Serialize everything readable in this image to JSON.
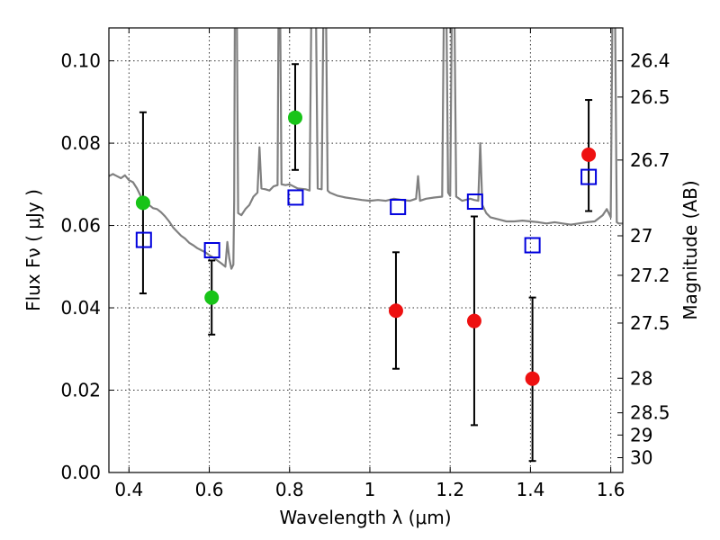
{
  "chart_data": {
    "type": "scatter",
    "title": "",
    "xlabel": "Wavelength  λ (μm)",
    "ylabel": "Flux  Fν  ( μJy )",
    "y2label": "Magnitude (AB)",
    "xlim": [
      0.35,
      1.63
    ],
    "ylim": [
      0.0,
      0.108
    ],
    "grid": true,
    "x_ticks": [
      0.4,
      0.6,
      0.8,
      1.0,
      1.2,
      1.4,
      1.6
    ],
    "x_tick_labels": [
      "0.4",
      "0.6",
      "0.8",
      "1",
      "1.2",
      "1.4",
      "1.6"
    ],
    "y_ticks": [
      0.0,
      0.02,
      0.04,
      0.06,
      0.08,
      0.1
    ],
    "y_tick_labels": [
      "0.00",
      "0.02",
      "0.04",
      "0.06",
      "0.08",
      "0.10"
    ],
    "y2_ticks": [
      {
        "label": "26.4",
        "flux": 0.1
      },
      {
        "label": "26.5",
        "flux": 0.0912
      },
      {
        "label": "26.7",
        "flux": 0.0759
      },
      {
        "label": "27",
        "flux": 0.0575
      },
      {
        "label": "27.2",
        "flux": 0.0479
      },
      {
        "label": "27.5",
        "flux": 0.0363
      },
      {
        "label": "28",
        "flux": 0.0229
      },
      {
        "label": "28.5",
        "flux": 0.0145
      },
      {
        "label": "29",
        "flux": 0.0091
      },
      {
        "label": "30",
        "flux": 0.0036
      }
    ],
    "colors": {
      "spectrum": "#808080",
      "green": "#18c418",
      "red": "#ee1111",
      "model": "#0000dd",
      "errorbar": "#000000"
    },
    "series": [
      {
        "kind": "spectrum",
        "points": [
          [
            0.35,
            0.072
          ],
          [
            0.36,
            0.0725
          ],
          [
            0.37,
            0.072
          ],
          [
            0.38,
            0.0715
          ],
          [
            0.39,
            0.0722
          ],
          [
            0.4,
            0.071
          ],
          [
            0.41,
            0.0705
          ],
          [
            0.42,
            0.069
          ],
          [
            0.43,
            0.067
          ],
          [
            0.44,
            0.0665
          ],
          [
            0.45,
            0.065
          ],
          [
            0.46,
            0.0642
          ],
          [
            0.47,
            0.064
          ],
          [
            0.48,
            0.0632
          ],
          [
            0.49,
            0.0622
          ],
          [
            0.5,
            0.061
          ],
          [
            0.51,
            0.0595
          ],
          [
            0.52,
            0.0585
          ],
          [
            0.53,
            0.0575
          ],
          [
            0.54,
            0.0568
          ],
          [
            0.55,
            0.0558
          ],
          [
            0.56,
            0.0552
          ],
          [
            0.57,
            0.0545
          ],
          [
            0.58,
            0.054
          ],
          [
            0.59,
            0.0535
          ],
          [
            0.6,
            0.0528
          ],
          [
            0.61,
            0.0522
          ],
          [
            0.62,
            0.0515
          ],
          [
            0.63,
            0.0508
          ],
          [
            0.64,
            0.05
          ],
          [
            0.645,
            0.056
          ],
          [
            0.65,
            0.052
          ],
          [
            0.655,
            0.0495
          ],
          [
            0.66,
            0.0505
          ],
          [
            0.662,
            0.066
          ],
          [
            0.664,
            0.12
          ],
          [
            0.668,
            0.12
          ],
          [
            0.672,
            0.063
          ],
          [
            0.68,
            0.0625
          ],
          [
            0.69,
            0.064
          ],
          [
            0.7,
            0.065
          ],
          [
            0.71,
            0.067
          ],
          [
            0.72,
            0.068
          ],
          [
            0.725,
            0.079
          ],
          [
            0.73,
            0.069
          ],
          [
            0.74,
            0.0688
          ],
          [
            0.75,
            0.0685
          ],
          [
            0.76,
            0.0695
          ],
          [
            0.77,
            0.0698
          ],
          [
            0.773,
            0.12
          ],
          [
            0.776,
            0.12
          ],
          [
            0.78,
            0.07
          ],
          [
            0.79,
            0.0698
          ],
          [
            0.8,
            0.07
          ],
          [
            0.82,
            0.069
          ],
          [
            0.84,
            0.0688
          ],
          [
            0.85,
            0.0685
          ],
          [
            0.855,
            0.12
          ],
          [
            0.86,
            0.12
          ],
          [
            0.865,
            0.12
          ],
          [
            0.87,
            0.069
          ],
          [
            0.88,
            0.0688
          ],
          [
            0.885,
            0.12
          ],
          [
            0.89,
            0.12
          ],
          [
            0.895,
            0.0685
          ],
          [
            0.9,
            0.068
          ],
          [
            0.92,
            0.0672
          ],
          [
            0.94,
            0.0668
          ],
          [
            0.96,
            0.0665
          ],
          [
            0.98,
            0.0662
          ],
          [
            1.0,
            0.066
          ],
          [
            1.02,
            0.0662
          ],
          [
            1.04,
            0.066
          ],
          [
            1.06,
            0.0665
          ],
          [
            1.08,
            0.0662
          ],
          [
            1.1,
            0.066
          ],
          [
            1.115,
            0.0665
          ],
          [
            1.12,
            0.072
          ],
          [
            1.125,
            0.066
          ],
          [
            1.14,
            0.0665
          ],
          [
            1.16,
            0.0668
          ],
          [
            1.18,
            0.067
          ],
          [
            1.185,
            0.12
          ],
          [
            1.19,
            0.12
          ],
          [
            1.195,
            0.068
          ],
          [
            1.2,
            0.0672
          ],
          [
            1.205,
            0.12
          ],
          [
            1.21,
            0.12
          ],
          [
            1.215,
            0.067
          ],
          [
            1.23,
            0.066
          ],
          [
            1.25,
            0.0665
          ],
          [
            1.26,
            0.0662
          ],
          [
            1.27,
            0.066
          ],
          [
            1.275,
            0.08
          ],
          [
            1.28,
            0.065
          ],
          [
            1.29,
            0.063
          ],
          [
            1.3,
            0.062
          ],
          [
            1.32,
            0.0615
          ],
          [
            1.34,
            0.061
          ],
          [
            1.36,
            0.061
          ],
          [
            1.38,
            0.0612
          ],
          [
            1.4,
            0.061
          ],
          [
            1.42,
            0.0608
          ],
          [
            1.44,
            0.0605
          ],
          [
            1.46,
            0.0608
          ],
          [
            1.48,
            0.0605
          ],
          [
            1.5,
            0.0602
          ],
          [
            1.52,
            0.0605
          ],
          [
            1.54,
            0.0608
          ],
          [
            1.56,
            0.061
          ],
          [
            1.58,
            0.0625
          ],
          [
            1.59,
            0.064
          ],
          [
            1.6,
            0.062
          ],
          [
            1.605,
            0.12
          ],
          [
            1.61,
            0.12
          ],
          [
            1.615,
            0.0608
          ],
          [
            1.62,
            0.0605
          ],
          [
            1.63,
            0.0605
          ]
        ]
      },
      {
        "kind": "points",
        "name": "green",
        "points": [
          {
            "x": 0.435,
            "y": 0.0655,
            "err_lo": 0.0435,
            "err_hi": 0.0875
          },
          {
            "x": 0.606,
            "y": 0.0425,
            "err_lo": 0.0335,
            "err_hi": 0.0515
          },
          {
            "x": 0.814,
            "y": 0.0862,
            "err_lo": 0.0735,
            "err_hi": 0.0992
          }
        ]
      },
      {
        "kind": "points",
        "name": "red",
        "points": [
          {
            "x": 1.065,
            "y": 0.0393,
            "err_lo": 0.0252,
            "err_hi": 0.0535
          },
          {
            "x": 1.26,
            "y": 0.0368,
            "err_lo": 0.0115,
            "err_hi": 0.0622
          },
          {
            "x": 1.405,
            "y": 0.0228,
            "err_lo": 0.0028,
            "err_hi": 0.0425
          },
          {
            "x": 1.545,
            "y": 0.0772,
            "err_lo": 0.0635,
            "err_hi": 0.0905
          }
        ]
      },
      {
        "kind": "model",
        "name": "model",
        "points": [
          {
            "x": 0.437,
            "y": 0.0565
          },
          {
            "x": 0.607,
            "y": 0.054
          },
          {
            "x": 0.815,
            "y": 0.0668
          },
          {
            "x": 1.07,
            "y": 0.0645
          },
          {
            "x": 1.262,
            "y": 0.0658
          },
          {
            "x": 1.405,
            "y": 0.0552
          },
          {
            "x": 1.545,
            "y": 0.0718
          }
        ]
      }
    ]
  }
}
